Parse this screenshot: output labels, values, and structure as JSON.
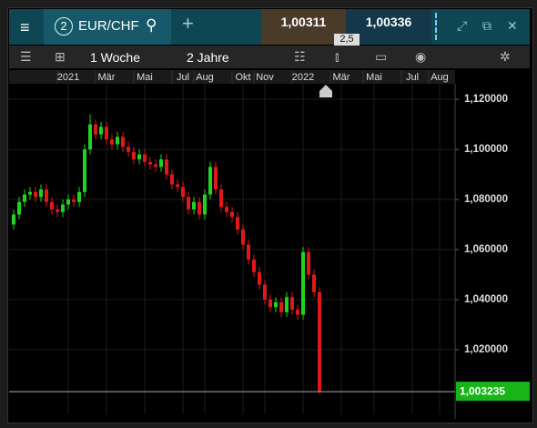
{
  "toolbar": {
    "number": "2",
    "symbol": "EUR/CHF",
    "bid": "1,00311",
    "ask": "1,00336",
    "spread": "2,5",
    "interval": "1 Woche",
    "range": "2 Jahre"
  },
  "chart_data": {
    "type": "candlestick",
    "categories": [
      null,
      null,
      null,
      null,
      null,
      null,
      null,
      null,
      null,
      null,
      "2021",
      null,
      null,
      null,
      null,
      null,
      null,
      "Mär",
      null,
      null,
      null,
      null,
      null,
      null,
      "Mai",
      null,
      null,
      null,
      null,
      null,
      null,
      "Jul",
      null,
      null,
      null,
      "Aug",
      null,
      null,
      null,
      null,
      null,
      null,
      "Okt",
      null,
      null,
      null,
      "Nov",
      null,
      null,
      null,
      null,
      null,
      null,
      "2022",
      null,
      null,
      null,
      null,
      null,
      null,
      "Mär",
      null,
      null,
      null,
      null,
      null,
      "Mai",
      null,
      null,
      null,
      null,
      null,
      null,
      "Jul",
      null,
      null,
      null,
      null,
      "Aug",
      null
    ],
    "open": [
      1.07,
      1.074,
      1.079,
      1.082,
      1.083,
      1.081,
      1.084,
      1.079,
      1.076,
      1.075,
      1.078,
      1.08,
      1.079,
      1.083,
      1.1,
      1.11,
      1.106,
      1.109,
      1.104,
      1.102,
      1.105,
      1.101,
      1.099,
      1.096,
      1.098,
      1.095,
      1.094,
      1.093,
      1.096,
      1.09,
      1.086,
      1.085,
      1.081,
      1.076,
      1.079,
      1.074,
      1.082,
      1.093,
      1.084,
      1.077,
      1.075,
      1.073,
      1.068,
      1.062,
      1.056,
      1.051,
      1.046,
      1.04,
      1.037,
      1.039,
      1.035,
      1.041,
      1.036,
      1.034,
      1.059,
      1.05,
      1.043,
      null,
      null,
      null,
      null,
      null,
      null,
      null,
      null,
      null,
      null,
      null,
      null,
      null,
      null,
      null,
      null,
      null,
      null,
      null,
      null,
      null,
      null,
      null
    ],
    "high": [
      1.076,
      1.081,
      1.084,
      1.085,
      1.085,
      1.086,
      1.086,
      1.081,
      1.078,
      1.08,
      1.082,
      1.082,
      1.085,
      1.102,
      1.114,
      1.112,
      1.111,
      1.111,
      1.106,
      1.107,
      1.107,
      1.103,
      1.101,
      1.1,
      1.1,
      1.097,
      1.096,
      1.098,
      1.098,
      1.092,
      1.088,
      1.087,
      1.083,
      1.081,
      1.081,
      1.084,
      1.095,
      1.095,
      1.086,
      1.079,
      1.077,
      1.075,
      1.07,
      1.064,
      1.058,
      1.053,
      1.048,
      1.042,
      1.041,
      1.041,
      1.043,
      1.043,
      1.038,
      1.061,
      1.061,
      1.052,
      1.045,
      null,
      null,
      null,
      null,
      null,
      null,
      null,
      null,
      null,
      null,
      null,
      null,
      null,
      null,
      null,
      null,
      null,
      null,
      null,
      null,
      null,
      null,
      null
    ],
    "low": [
      1.068,
      1.072,
      1.077,
      1.08,
      1.079,
      1.079,
      1.077,
      1.074,
      1.073,
      1.073,
      1.076,
      1.077,
      1.077,
      1.081,
      1.098,
      1.104,
      1.104,
      1.102,
      1.1,
      1.1,
      1.099,
      1.097,
      1.094,
      1.094,
      1.093,
      1.092,
      1.091,
      1.091,
      1.088,
      1.084,
      1.083,
      1.079,
      1.074,
      1.074,
      1.072,
      1.072,
      1.08,
      1.082,
      1.075,
      1.073,
      1.071,
      1.066,
      1.06,
      1.054,
      1.049,
      1.044,
      1.038,
      1.035,
      1.035,
      1.033,
      1.033,
      1.034,
      1.032,
      1.032,
      1.048,
      1.041,
      1.0025,
      null,
      null,
      null,
      null,
      null,
      null,
      null,
      null,
      null,
      null,
      null,
      null,
      null,
      null,
      null,
      null,
      null,
      null,
      null,
      null,
      null,
      null,
      null
    ],
    "close": [
      1.074,
      1.079,
      1.082,
      1.083,
      1.081,
      1.084,
      1.079,
      1.076,
      1.075,
      1.078,
      1.08,
      1.079,
      1.083,
      1.1,
      1.11,
      1.106,
      1.109,
      1.104,
      1.102,
      1.105,
      1.101,
      1.099,
      1.096,
      1.098,
      1.095,
      1.094,
      1.093,
      1.096,
      1.09,
      1.086,
      1.085,
      1.081,
      1.076,
      1.079,
      1.074,
      1.082,
      1.093,
      1.084,
      1.077,
      1.075,
      1.073,
      1.068,
      1.062,
      1.056,
      1.051,
      1.046,
      1.04,
      1.037,
      1.039,
      1.035,
      1.041,
      1.036,
      1.034,
      1.059,
      1.05,
      1.043,
      1.003235,
      null,
      null,
      null,
      null,
      null,
      null,
      null,
      null,
      null,
      null,
      null,
      null,
      null,
      null,
      null,
      null,
      null,
      null,
      null,
      null,
      null,
      null,
      null
    ],
    "up_color": "#1ed41e",
    "down_color": "#e01818",
    "ylim": [
      0.9942,
      1.1262
    ],
    "yticks": [
      {
        "value": 1.02,
        "label": "1,020000"
      },
      {
        "value": 1.04,
        "label": "1,040000"
      },
      {
        "value": 1.06,
        "label": "1,060000"
      },
      {
        "value": 1.08,
        "label": "1,080000"
      },
      {
        "value": 1.1,
        "label": "1,100000"
      },
      {
        "value": 1.12,
        "label": "1,120000"
      }
    ],
    "last_price": {
      "value": 1.003235,
      "label": "1,003235"
    },
    "grid": true
  }
}
